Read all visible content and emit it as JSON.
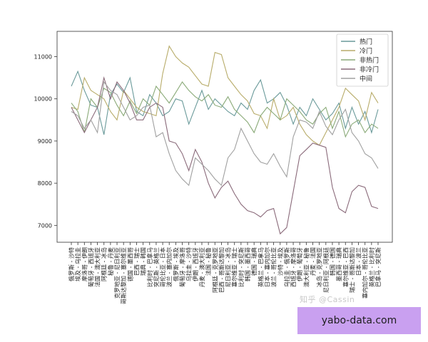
{
  "watermark": "知乎 @Cassin",
  "brand": "yabo-data.com",
  "chart_data": {
    "type": "line",
    "title": "",
    "xlabel": "",
    "ylabel": "",
    "ylim": [
      6600,
      11600
    ],
    "yticks": [
      7000,
      8000,
      9000,
      10000,
      11000
    ],
    "grid": false,
    "legend_position": "top-right",
    "categories": [
      "俄罗斯 - 沙特",
      "埃及 - 乌拉圭",
      "摩洛哥 - 伊朗",
      "葡萄牙 - 西班牙",
      "法国 - 澳大利亚",
      "阿根廷 - 冰岛",
      "秘鲁 - 丹麦",
      "克罗地亚 - 尼日利亚",
      "哥斯达黎加 - 塞尔维亚",
      "德国 - 墨西哥",
      "巴西 - 瑞士",
      "瑞典 - 韩国",
      "比利时 - 巴拿马",
      "突尼斯 - 英格兰",
      "哥伦比亚 - 日本",
      "波兰 - 塞内加尔",
      "俄罗斯 - 埃及",
      "葡萄牙 - 摩洛哥",
      "乌拉圭 - 沙特",
      "伊朗 - 西班牙",
      "丹麦 - 澳大利亚",
      "法国 - 秘鲁",
      "阿根廷 - 克罗地亚",
      "巴西 - 哥斯达黎加",
      "尼日利亚 - 冰岛",
      "塞尔维亚 - 瑞士",
      "比利时 - 突尼斯",
      "韩国 - 墨西哥",
      "德国 - 瑞典",
      "英格兰 - 巴拿马",
      "日本 - 塞内加尔",
      "波兰 - 哥伦比亚",
      "沙特 - 埃及",
      "乌拉圭 - 俄罗斯",
      "西班牙 - 摩洛哥",
      "伊朗 - 葡萄牙",
      "澳大利亚 - 秘鲁",
      "丹麦 - 法国",
      "冰岛 - 克罗地亚",
      "尼日利亚 - 阿根廷",
      "韩国 - 德国",
      "墨西哥 - 瑞典",
      "塞尔维亚 - 巴西",
      "瑞士 - 哥斯达黎加",
      "日本 - 波兰",
      "塞内加尔 - 哥伦比亚",
      "英格兰 - 比利时",
      "巴拿马 - 突尼斯"
    ],
    "series": [
      {
        "name": "热门",
        "color": "#6a9a9a",
        "values": [
          10300,
          10650,
          10200,
          9850,
          9800,
          9150,
          10100,
          10350,
          10150,
          10500,
          9700,
          9600,
          10100,
          9900,
          9600,
          9700,
          10000,
          9950,
          9400,
          9800,
          10200,
          9750,
          10000,
          9850,
          9700,
          9600,
          9900,
          9750,
          10200,
          10450,
          9900,
          10000,
          10150,
          9850,
          9400,
          9800,
          9600,
          10000,
          9750,
          9500,
          9650,
          9900,
          9300,
          9800,
          9400,
          9700,
          9200,
          9750
        ]
      },
      {
        "name": "冷门",
        "color": "#b8ac6a",
        "values": [
          9800,
          9750,
          10500,
          10200,
          10100,
          10000,
          9700,
          9500,
          10200,
          10000,
          9800,
          9700,
          9650,
          9600,
          10600,
          11250,
          11000,
          10850,
          10750,
          10550,
          10350,
          10300,
          11100,
          11050,
          10500,
          10300,
          10100,
          9950,
          9650,
          9600,
          9300,
          10000,
          9500,
          9600,
          9800,
          9400,
          9150,
          9000,
          8900,
          9200,
          9500,
          9800,
          10250,
          10100,
          9950,
          9500,
          10150,
          9900
        ]
      },
      {
        "name": "非热门",
        "color": "#8aaa78",
        "values": [
          9900,
          9700,
          9200,
          10000,
          9800,
          10250,
          10150,
          9850,
          9600,
          9950,
          9650,
          10000,
          9850,
          10300,
          10100,
          9900,
          10150,
          10400,
          10200,
          10050,
          9950,
          10100,
          9850,
          9800,
          10050,
          9750,
          9600,
          9450,
          9200,
          9600,
          9800,
          9650,
          9500,
          10000,
          9850,
          9700,
          9500,
          9400,
          9650,
          9800,
          9300,
          9700,
          9100,
          9400,
          9500,
          9200,
          9400,
          9300
        ]
      },
      {
        "name": "非冷门",
        "color": "#8a6a7a",
        "values": [
          9800,
          9500,
          9200,
          9500,
          9800,
          10500,
          10000,
          10400,
          10200,
          9900,
          9500,
          9500,
          9800,
          9900,
          9800,
          9000,
          8950,
          8700,
          8300,
          8800,
          8500,
          8000,
          7650,
          7900,
          8050,
          7750,
          7500,
          7350,
          7300,
          7200,
          7350,
          7400,
          6800,
          6950,
          7800,
          8650,
          8800,
          8950,
          8900,
          8850,
          7900,
          7400,
          7300,
          7800,
          7950,
          7900,
          7450,
          7400
        ]
      },
      {
        "name": "中间",
        "color": "#a0a0a0",
        "values": [
          9700,
          9600,
          9300,
          9500,
          9200,
          10400,
          10200,
          10100,
          9800,
          9500,
          9600,
          9800,
          9850,
          9100,
          9200,
          8700,
          8300,
          8100,
          7950,
          8600,
          8450,
          8300,
          8100,
          7950,
          8600,
          8800,
          9300,
          9000,
          8700,
          8500,
          8450,
          8700,
          8400,
          8150,
          9100,
          9500,
          9450,
          9300,
          9700,
          9350,
          9150,
          9500,
          9750,
          9200,
          9000,
          8700,
          8600,
          8350
        ]
      }
    ]
  }
}
